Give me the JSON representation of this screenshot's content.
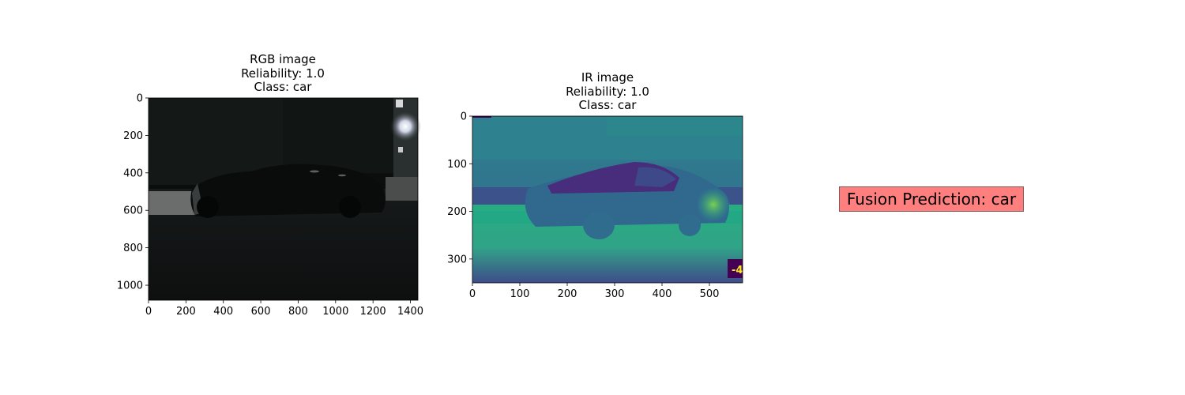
{
  "rgb_panel": {
    "title_lines": [
      "RGB image",
      "Reliability: 1.0",
      "Class: car"
    ],
    "x_ticks": [
      "0",
      "200",
      "400",
      "600",
      "800",
      "1000",
      "1200",
      "1400"
    ],
    "y_ticks": [
      "0",
      "200",
      "400",
      "600",
      "800",
      "1000"
    ],
    "x_range": [
      0,
      1440
    ],
    "y_range": [
      0,
      1080
    ]
  },
  "ir_panel": {
    "title_lines": [
      "IR image",
      "Reliability: 1.0",
      "Class: car"
    ],
    "x_ticks": [
      "0",
      "100",
      "200",
      "300",
      "400",
      "500"
    ],
    "y_ticks": [
      "0",
      "100",
      "200",
      "300"
    ],
    "x_range": [
      0,
      570
    ],
    "y_range": [
      0,
      350
    ],
    "overlay_text": "-4"
  },
  "fusion": {
    "label": "Fusion Prediction: car",
    "box_color": "#ff7f7f"
  }
}
